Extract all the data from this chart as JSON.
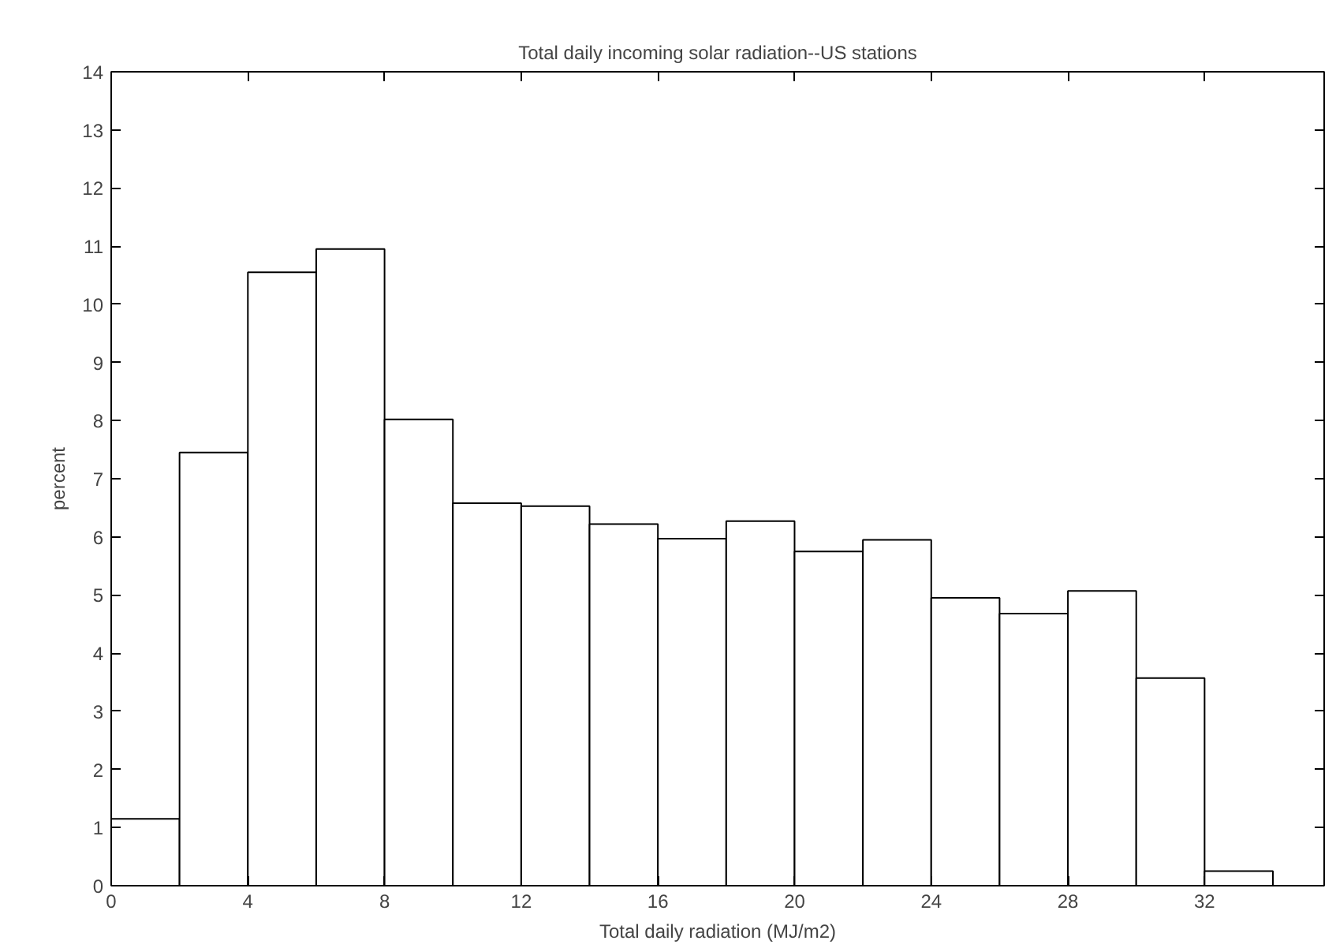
{
  "chart_data": {
    "type": "histogram",
    "title": "Total daily incoming solar radiation--US stations",
    "xlabel": "Total daily radiation (MJ/m2)",
    "ylabel": "percent",
    "bins": [
      0,
      2,
      4,
      6,
      8,
      10,
      12,
      14,
      16,
      18,
      20,
      22,
      24,
      26,
      28,
      30,
      32,
      34
    ],
    "values": [
      1.15,
      7.45,
      10.55,
      10.95,
      8.02,
      6.58,
      6.53,
      6.22,
      5.97,
      6.27,
      5.75,
      5.95,
      4.95,
      4.68,
      5.07,
      3.57,
      0.25
    ],
    "color": "#ffffff",
    "xlim": [
      0,
      35.5
    ],
    "xticks": [
      0,
      4,
      8,
      12,
      16,
      20,
      24,
      28,
      32
    ],
    "ylim": [
      0,
      14
    ],
    "yticks": [
      0,
      1,
      2,
      3,
      4,
      5,
      6,
      7,
      8,
      9,
      10,
      11,
      12,
      13,
      14
    ],
    "grid": false
  }
}
